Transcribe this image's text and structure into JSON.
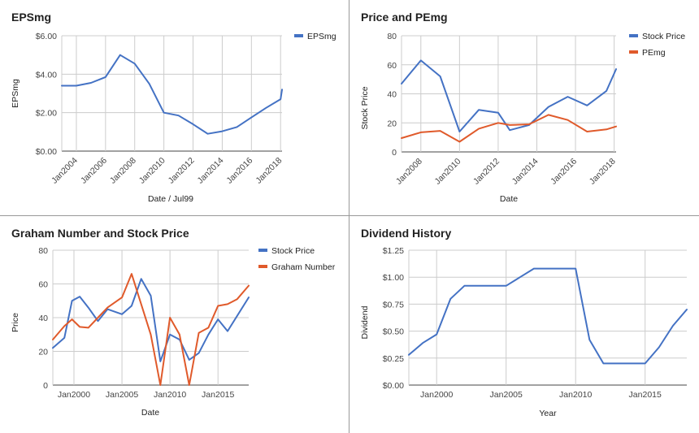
{
  "chart_data": [
    {
      "type": "line",
      "title": "EPSmg",
      "xlabel": "Date / Jul99",
      "ylabel": "EPSmg",
      "x_ticks": [
        "Jan2004",
        "Jan2006",
        "Jan2008",
        "Jan2010",
        "Jan2012",
        "Jan2014",
        "Jan2016",
        "Jan2018"
      ],
      "y_ticks": [
        "$0.00",
        "$2.00",
        "$4.00",
        "$6.00"
      ],
      "xlim": [
        2003.0,
        2018.1
      ],
      "ylim": [
        0,
        6
      ],
      "legend": "right",
      "series": [
        {
          "name": "EPSmg",
          "color": "#4472c4",
          "x": [
            2003,
            2004,
            2005,
            2006,
            2007,
            2008,
            2009,
            2010,
            2011,
            2012,
            2013,
            2014,
            2015,
            2016,
            2017,
            2018,
            2018.1
          ],
          "y": [
            3.4,
            3.4,
            3.55,
            3.85,
            5.0,
            4.55,
            3.5,
            2.0,
            1.85,
            1.4,
            0.9,
            1.03,
            1.25,
            1.75,
            2.25,
            2.7,
            3.2
          ]
        }
      ]
    },
    {
      "type": "line",
      "title": "Price and PEmg",
      "xlabel": "Date",
      "ylabel": "Stock Price",
      "x_ticks": [
        "Jan2008",
        "Jan2010",
        "Jan2012",
        "Jan2014",
        "Jan2016",
        "Jan2018"
      ],
      "y_ticks": [
        "0",
        "20",
        "40",
        "60",
        "80"
      ],
      "xlim": [
        2007.0,
        2018.1
      ],
      "ylim": [
        0,
        80
      ],
      "legend": "right",
      "series": [
        {
          "name": "Stock Price",
          "color": "#4472c4",
          "x": [
            2007.0,
            2008.0,
            2009.0,
            2010.0,
            2011.0,
            2012.0,
            2012.6,
            2013.6,
            2014.6,
            2015.6,
            2016.6,
            2017.6,
            2018.1
          ],
          "y": [
            47,
            63,
            52,
            14,
            29,
            27,
            15,
            18.5,
            31,
            38,
            32,
            42,
            57
          ]
        },
        {
          "name": "PEmg",
          "color": "#e05a2b",
          "x": [
            2007.0,
            2008.0,
            2009.0,
            2010.0,
            2011.0,
            2012.0,
            2012.6,
            2013.6,
            2014.6,
            2015.6,
            2016.6,
            2017.6,
            2018.1
          ],
          "y": [
            9.5,
            13.5,
            14.5,
            7,
            16,
            20,
            18.5,
            19,
            25.5,
            22,
            14,
            15.5,
            17.5
          ]
        }
      ]
    },
    {
      "type": "line",
      "title": "Graham Number and Stock Price",
      "xlabel": "Date",
      "ylabel": "Price",
      "x_ticks": [
        "Jan2000",
        "Jan2005",
        "Jan2010",
        "Jan2015"
      ],
      "y_ticks": [
        "0",
        "20",
        "40",
        "60",
        "80"
      ],
      "xlim": [
        1997.8,
        2018.2
      ],
      "ylim": [
        0,
        80
      ],
      "legend": "right",
      "series": [
        {
          "name": "Stock Price",
          "color": "#4472c4",
          "x": [
            1997.8,
            1999.0,
            1999.8,
            2000.6,
            2001.5,
            2002.5,
            2003.5,
            2005.0,
            2006.0,
            2007.0,
            2008.0,
            2009.0,
            2010.0,
            2011.0,
            2012.0,
            2013.0,
            2014.0,
            2015.0,
            2016.0,
            2018.2
          ],
          "y": [
            22,
            28,
            50,
            52.5,
            46,
            38,
            45,
            42,
            47,
            63,
            53,
            14,
            30,
            27,
            15,
            19,
            30,
            39,
            32,
            52
          ]
        },
        {
          "name": "Graham Number",
          "color": "#e05a2b",
          "x": [
            1997.8,
            1999.0,
            1999.8,
            2000.6,
            2001.5,
            2002.5,
            2003.5,
            2005.0,
            2006.0,
            2007.0,
            2008.0,
            2009.0,
            2010.0,
            2011.0,
            2012.0,
            2013.0,
            2014.0,
            2015.0,
            2016.0,
            2017.0,
            2018.2
          ],
          "y": [
            27,
            35,
            39,
            34.5,
            34,
            40,
            46,
            52,
            66,
            48,
            30,
            0,
            40,
            30,
            0,
            31,
            34,
            47,
            48,
            51,
            59
          ]
        }
      ]
    },
    {
      "type": "line",
      "title": "Dividend History",
      "xlabel": "Year",
      "ylabel": "Dividend",
      "x_ticks": [
        "Jan2000",
        "Jan2005",
        "Jan2010",
        "Jan2015"
      ],
      "y_ticks": [
        "$0.00",
        "$0.25",
        "$0.50",
        "$0.75",
        "$1.00",
        "$1.25"
      ],
      "xlim": [
        1998.0,
        2018.0
      ],
      "ylim": [
        0,
        1.25
      ],
      "legend": "none",
      "series": [
        {
          "name": "",
          "color": "#4472c4",
          "x": [
            1998,
            1999,
            2000,
            2001,
            2002,
            2003,
            2004,
            2005,
            2006,
            2007,
            2008,
            2009,
            2010,
            2011,
            2012,
            2013,
            2014,
            2015,
            2016,
            2017,
            2018
          ],
          "y": [
            0.28,
            0.39,
            0.47,
            0.8,
            0.92,
            0.92,
            0.92,
            0.92,
            1.0,
            1.08,
            1.08,
            1.08,
            1.08,
            0.42,
            0.2,
            0.2,
            0.2,
            0.2,
            0.35,
            0.55,
            0.7
          ]
        }
      ]
    }
  ]
}
